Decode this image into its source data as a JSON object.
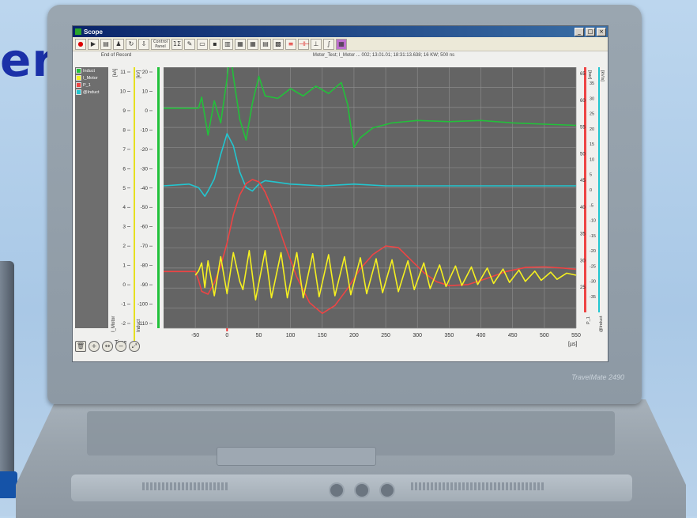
{
  "headline": "er",
  "laptop_brand": "TravelMate 2490",
  "window": {
    "title": "Scope",
    "controls": [
      "_",
      "□",
      "×"
    ],
    "toolbar": [
      "●",
      "▶",
      "▤",
      "♟",
      "↻",
      "⇩",
      "Control Panel",
      "1Σ",
      "✎",
      "▭",
      "▪",
      "▥",
      "▦",
      "▦",
      "▤",
      "▩",
      "≡",
      "⊣⊢",
      "⊥",
      "∫",
      "▦"
    ],
    "end_of_record": "End of Record",
    "header_info": "Motor_Test; I_Motor ... 002; 13.01.01; 18:31:13.638; 16 KW; 500 ns"
  },
  "legend": [
    {
      "name": "Induct",
      "color": "#22c13a"
    },
    {
      "name": "I_Motor",
      "color": "#f5f020"
    },
    {
      "name": "P_1",
      "color": "#ee4444"
    },
    {
      "name": "@Induct",
      "color": "#22c6d0"
    }
  ],
  "axes": {
    "left_axis1_label": "[kA]",
    "left_axis2_label": "[kV]",
    "left_axis1_ticks": [
      "11",
      "10",
      "9",
      "8",
      "7",
      "6",
      "5",
      "4",
      "3",
      "2",
      "1",
      "0",
      "-1",
      "-2"
    ],
    "left_axis2_ticks": [
      "20",
      "10",
      "0",
      "-10",
      "-20",
      "-30",
      "-40",
      "-50",
      "-60",
      "-70",
      "-80",
      "-90",
      "-100",
      "-110"
    ],
    "left_axis1_name": "I_Motor",
    "left_axis2_name": "Induct",
    "right_axis1_label": "[bar]",
    "right_axis2_label": "[kV/s]",
    "right_axis1_ticks": [
      "65",
      "60",
      "55",
      "50",
      "45",
      "40",
      "35",
      "30",
      "25"
    ],
    "right_axis2_ticks": [
      "35",
      "30",
      "25",
      "20",
      "15",
      "10",
      "5",
      "0",
      "-5",
      "-10",
      "-15",
      "-20",
      "-25",
      "-30",
      "-35"
    ],
    "right_axis1_name": "P_1",
    "right_axis2_name": "@Induct",
    "x_label": "Time",
    "x_unit": "[µs]",
    "x_ticks": [
      "-50",
      "0",
      "50",
      "100",
      "150",
      "200",
      "250",
      "300",
      "350",
      "400",
      "450",
      "500",
      "550"
    ]
  },
  "chart_data": {
    "type": "line",
    "x_range": [
      -100,
      550
    ],
    "series": [
      {
        "name": "Induct",
        "color": "#22c13a",
        "x": [
          -100,
          -45,
          -40,
          -30,
          -20,
          -10,
          0,
          5,
          10,
          20,
          30,
          40,
          50,
          60,
          80,
          100,
          120,
          140,
          160,
          180,
          190,
          200,
          210,
          230,
          260,
          300,
          350,
          400,
          450,
          500,
          550
        ],
        "y": [
          4,
          4,
          13,
          -18,
          10,
          -8,
          28,
          52,
          30,
          -5,
          -22,
          8,
          30,
          14,
          12,
          20,
          14,
          22,
          16,
          25,
          7,
          -28,
          -20,
          -12,
          -8,
          -6,
          -7,
          -6,
          -8,
          -9,
          -10
        ]
      },
      {
        "name": "@Induct",
        "color": "#22c6d0",
        "x": [
          -100,
          -60,
          -45,
          -35,
          -30,
          -20,
          -10,
          0,
          10,
          20,
          30,
          40,
          50,
          60,
          80,
          100,
          150,
          200,
          250,
          300,
          350,
          400,
          450,
          500,
          550
        ],
        "y": [
          0,
          1,
          -1,
          -6,
          -3,
          4,
          18,
          30,
          23,
          8,
          -1,
          -3,
          1,
          3,
          2,
          1,
          0,
          1,
          0,
          0,
          0,
          0,
          0,
          0,
          0
        ]
      },
      {
        "name": "P_1",
        "color": "#ee4444",
        "x": [
          -100,
          -60,
          -50,
          -45,
          -40,
          -30,
          -20,
          -10,
          0,
          10,
          20,
          30,
          40,
          50,
          60,
          75,
          90,
          110,
          130,
          150,
          170,
          190,
          210,
          230,
          250,
          270,
          290,
          310,
          330,
          350,
          380,
          410,
          440,
          470,
          500,
          530,
          550
        ],
        "y": [
          30,
          30,
          30,
          28.5,
          26.5,
          26,
          28,
          31,
          35,
          40,
          43.5,
          45.5,
          46.2,
          45.8,
          44,
          40,
          35,
          29,
          24.5,
          22.6,
          24,
          27,
          30.5,
          33,
          34.5,
          34.2,
          32,
          29.8,
          28.2,
          27.5,
          27.7,
          28.8,
          30,
          30.7,
          30.8,
          30.6,
          30.4
        ]
      },
      {
        "name": "I_Motor",
        "color": "#f5f020",
        "x": [
          -50,
          -45,
          -40,
          -35,
          -30,
          -20,
          -10,
          0,
          10,
          20,
          25,
          35,
          45,
          60,
          70,
          85,
          95,
          110,
          120,
          135,
          145,
          160,
          170,
          185,
          195,
          210,
          220,
          235,
          245,
          260,
          270,
          285,
          295,
          310,
          320,
          335,
          345,
          360,
          370,
          385,
          395,
          410,
          420,
          435,
          445,
          460,
          470,
          485,
          495,
          510,
          520,
          535,
          550
        ],
        "y": [
          0,
          0.2,
          0.6,
          -0.6,
          0.7,
          -1,
          0.9,
          -0.9,
          1.1,
          -0.3,
          -0.7,
          1.2,
          -1.2,
          1.2,
          -1.1,
          1.1,
          -1.1,
          1.1,
          -1.1,
          1.05,
          -1.05,
          1.0,
          -1.0,
          0.9,
          -0.95,
          0.85,
          -0.9,
          0.8,
          -0.85,
          0.75,
          -0.8,
          0.7,
          -0.7,
          0.6,
          -0.65,
          0.5,
          -0.55,
          0.45,
          -0.5,
          0.4,
          -0.45,
          0.35,
          -0.4,
          0.3,
          -0.35,
          0.25,
          -0.3,
          0.2,
          -0.25,
          0.15,
          -0.2,
          0.1,
          0
        ]
      }
    ]
  }
}
